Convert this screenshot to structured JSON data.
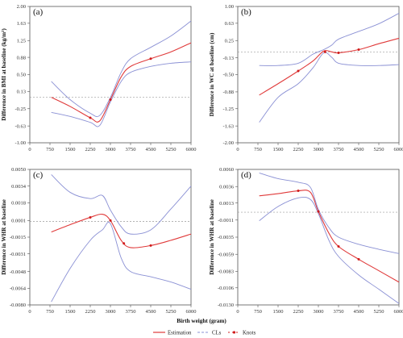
{
  "figure": {
    "x_axis_title": "Birth weight (gram)",
    "legend": {
      "estimation": "Estimation",
      "cls": "CLs",
      "knots": "Knots"
    }
  },
  "colors": {
    "estimation": "#e03a3a",
    "cls": "#8a90d4",
    "reference": "#9a9a9a",
    "knots": "#d01c1c"
  },
  "chart_data": [
    {
      "type": "line",
      "panel_label": "(a)",
      "ylabel": "Difference in BMI at baseline (kg/m²)",
      "xlim": [
        0,
        6000
      ],
      "ylim": [
        -1.0,
        2.0
      ],
      "x_ticks": [
        "0",
        "750",
        "1500",
        "2250",
        "3000",
        "3750",
        "4500",
        "5250",
        "6000"
      ],
      "y_ticks": [
        "-1.00",
        "-0.63",
        "-0.25",
        "0.13",
        "0.50",
        "0.88",
        "1.25",
        "1.63",
        "2.00"
      ],
      "y_tick_values": [
        -1.0,
        -0.63,
        -0.25,
        0.13,
        0.5,
        0.88,
        1.25,
        1.63,
        2.0
      ],
      "reference_y": 0.0,
      "series": [
        {
          "name": "Estimation",
          "x": [
            800,
            1500,
            2250,
            2600,
            3000,
            3400,
            3750,
            4500,
            5250,
            6000
          ],
          "y": [
            0.0,
            -0.2,
            -0.45,
            -0.52,
            -0.05,
            0.45,
            0.68,
            0.85,
            1.0,
            1.2
          ]
        },
        {
          "name": "CLs",
          "x": [
            800,
            1500,
            2250,
            2600,
            3000,
            3400,
            3750,
            4500,
            5250,
            6000
          ],
          "y": [
            0.35,
            -0.05,
            -0.35,
            -0.4,
            0.0,
            0.55,
            0.85,
            1.1,
            1.35,
            1.68
          ]
        },
        {
          "name": "CLs",
          "x": [
            800,
            1500,
            2250,
            2600,
            3000,
            3400,
            3750,
            4500,
            5250,
            6000
          ],
          "y": [
            -0.33,
            -0.42,
            -0.55,
            -0.62,
            -0.1,
            0.35,
            0.55,
            0.68,
            0.75,
            0.78
          ]
        }
      ],
      "knots": {
        "x": [
          2250,
          3000,
          4500
        ],
        "y": [
          -0.45,
          -0.05,
          0.85
        ]
      }
    },
    {
      "type": "line",
      "panel_label": "(b)",
      "ylabel": "Difference in WC at baseline (cm)",
      "xlim": [
        0,
        6000
      ],
      "ylim": [
        -2.0,
        1.0
      ],
      "x_ticks": [
        "0",
        "750",
        "1500",
        "2250",
        "3000",
        "3750",
        "4500",
        "5250",
        "6000"
      ],
      "y_ticks": [
        "-2.00",
        "-1.63",
        "-1.25",
        "-0.88",
        "-0.50",
        "-0.13",
        "0.25",
        "0.63",
        "1.00"
      ],
      "y_tick_values": [
        -2.0,
        -1.63,
        -1.25,
        -0.88,
        -0.5,
        -0.13,
        0.25,
        0.63,
        1.0
      ],
      "reference_y": 0.0,
      "series": [
        {
          "name": "Estimation",
          "x": [
            800,
            1500,
            2250,
            2800,
            3200,
            3500,
            3750,
            4500,
            5250,
            6000
          ],
          "y": [
            -0.95,
            -0.7,
            -0.42,
            -0.2,
            0.02,
            0.0,
            -0.02,
            0.05,
            0.18,
            0.3
          ]
        },
        {
          "name": "CLs",
          "x": [
            800,
            1500,
            2250,
            2800,
            3200,
            3500,
            3750,
            4500,
            5250,
            6000
          ],
          "y": [
            -0.3,
            -0.3,
            -0.25,
            -0.05,
            0.05,
            0.15,
            0.28,
            0.45,
            0.62,
            0.85
          ]
        },
        {
          "name": "CLs",
          "x": [
            800,
            1500,
            2250,
            2800,
            3200,
            3500,
            3750,
            4500,
            5250,
            6000
          ],
          "y": [
            -1.55,
            -1.0,
            -0.7,
            -0.35,
            -0.02,
            -0.12,
            -0.25,
            -0.3,
            -0.3,
            -0.28
          ]
        }
      ],
      "knots": {
        "x": [
          2250,
          3250,
          3750,
          4500
        ],
        "y": [
          -0.42,
          0.0,
          -0.02,
          0.05
        ]
      }
    },
    {
      "type": "line",
      "panel_label": "(c)",
      "ylabel": "Difference in WHR at baseline",
      "xlim": [
        0,
        6000
      ],
      "ylim": [
        -0.008,
        0.005
      ],
      "x_ticks": [
        "0",
        "750",
        "1500",
        "2250",
        "3000",
        "3750",
        "4500",
        "5250",
        "6000"
      ],
      "y_ticks": [
        "-0.0080",
        "-0.0064",
        "-0.0048",
        "-0.0031",
        "-0.0015",
        "0.0001",
        "0.0018",
        "0.0034",
        "0.0050"
      ],
      "y_tick_values": [
        -0.008,
        -0.0064,
        -0.0048,
        -0.0031,
        -0.0015,
        0.0001,
        0.0018,
        0.0034,
        0.005
      ],
      "reference_y": 0.0,
      "series": [
        {
          "name": "Estimation",
          "x": [
            800,
            1500,
            2250,
            2700,
            3000,
            3400,
            3750,
            4500,
            5250,
            6000
          ],
          "y": [
            -0.001,
            -0.0003,
            0.0004,
            0.0007,
            0.0001,
            -0.0018,
            -0.0025,
            -0.0023,
            -0.0018,
            -0.0012
          ]
        },
        {
          "name": "CLs",
          "x": [
            800,
            1500,
            2250,
            2700,
            3000,
            3400,
            3750,
            4500,
            5250,
            6000
          ],
          "y": [
            0.0045,
            0.0028,
            0.0022,
            0.0025,
            0.0011,
            -0.0005,
            -0.0012,
            -0.0008,
            0.0012,
            0.0034
          ]
        },
        {
          "name": "CLs",
          "x": [
            800,
            1500,
            2250,
            2700,
            3000,
            3400,
            3750,
            4500,
            5250,
            6000
          ],
          "y": [
            -0.0077,
            -0.0045,
            -0.0018,
            -0.0008,
            -0.0002,
            -0.0035,
            -0.0048,
            -0.0053,
            -0.0058,
            -0.0065
          ]
        }
      ],
      "knots": {
        "x": [
          2250,
          3000,
          3500,
          4500
        ],
        "y": [
          0.0004,
          0.0001,
          -0.0021,
          -0.0023
        ]
      }
    },
    {
      "type": "line",
      "panel_label": "(d)",
      "ylabel": "Difference in WHR at baseline",
      "xlim": [
        0,
        6000
      ],
      "ylim": [
        -0.013,
        0.006
      ],
      "x_ticks": [
        "0",
        "750",
        "1500",
        "2250",
        "3000",
        "3750",
        "4500",
        "5250",
        "6000"
      ],
      "y_ticks": [
        "-0.0130",
        "-0.0106",
        "-0.0083",
        "-0.0059",
        "-0.0035",
        "-0.0011",
        "0.0013",
        "0.0036",
        "0.0060"
      ],
      "y_tick_values": [
        -0.013,
        -0.0106,
        -0.0083,
        -0.0059,
        -0.0035,
        -0.0011,
        0.0013,
        0.0036,
        0.006
      ],
      "reference_y": 0.0,
      "series": [
        {
          "name": "Estimation",
          "x": [
            800,
            1500,
            2250,
            2700,
            3000,
            3400,
            3750,
            4500,
            5250,
            6000
          ],
          "y": [
            0.0023,
            0.0026,
            0.003,
            0.0028,
            0.0001,
            -0.003,
            -0.0048,
            -0.0066,
            -0.0082,
            -0.0098
          ]
        },
        {
          "name": "CLs",
          "x": [
            800,
            1500,
            2250,
            2700,
            3000,
            3400,
            3750,
            4500,
            5250,
            6000
          ],
          "y": [
            0.0055,
            0.0047,
            0.0042,
            0.0035,
            0.0004,
            -0.0022,
            -0.0035,
            -0.0045,
            -0.0052,
            -0.0058
          ]
        },
        {
          "name": "CLs",
          "x": [
            800,
            1500,
            2250,
            2700,
            3000,
            3400,
            3750,
            4500,
            5250,
            6000
          ],
          "y": [
            -0.0012,
            0.0008,
            0.002,
            0.0018,
            -0.0002,
            -0.004,
            -0.0062,
            -0.0088,
            -0.0108,
            -0.0128
          ]
        }
      ],
      "knots": {
        "x": [
          2250,
          3000,
          3750,
          4500
        ],
        "y": [
          0.003,
          0.0001,
          -0.0048,
          -0.0066
        ]
      }
    }
  ]
}
